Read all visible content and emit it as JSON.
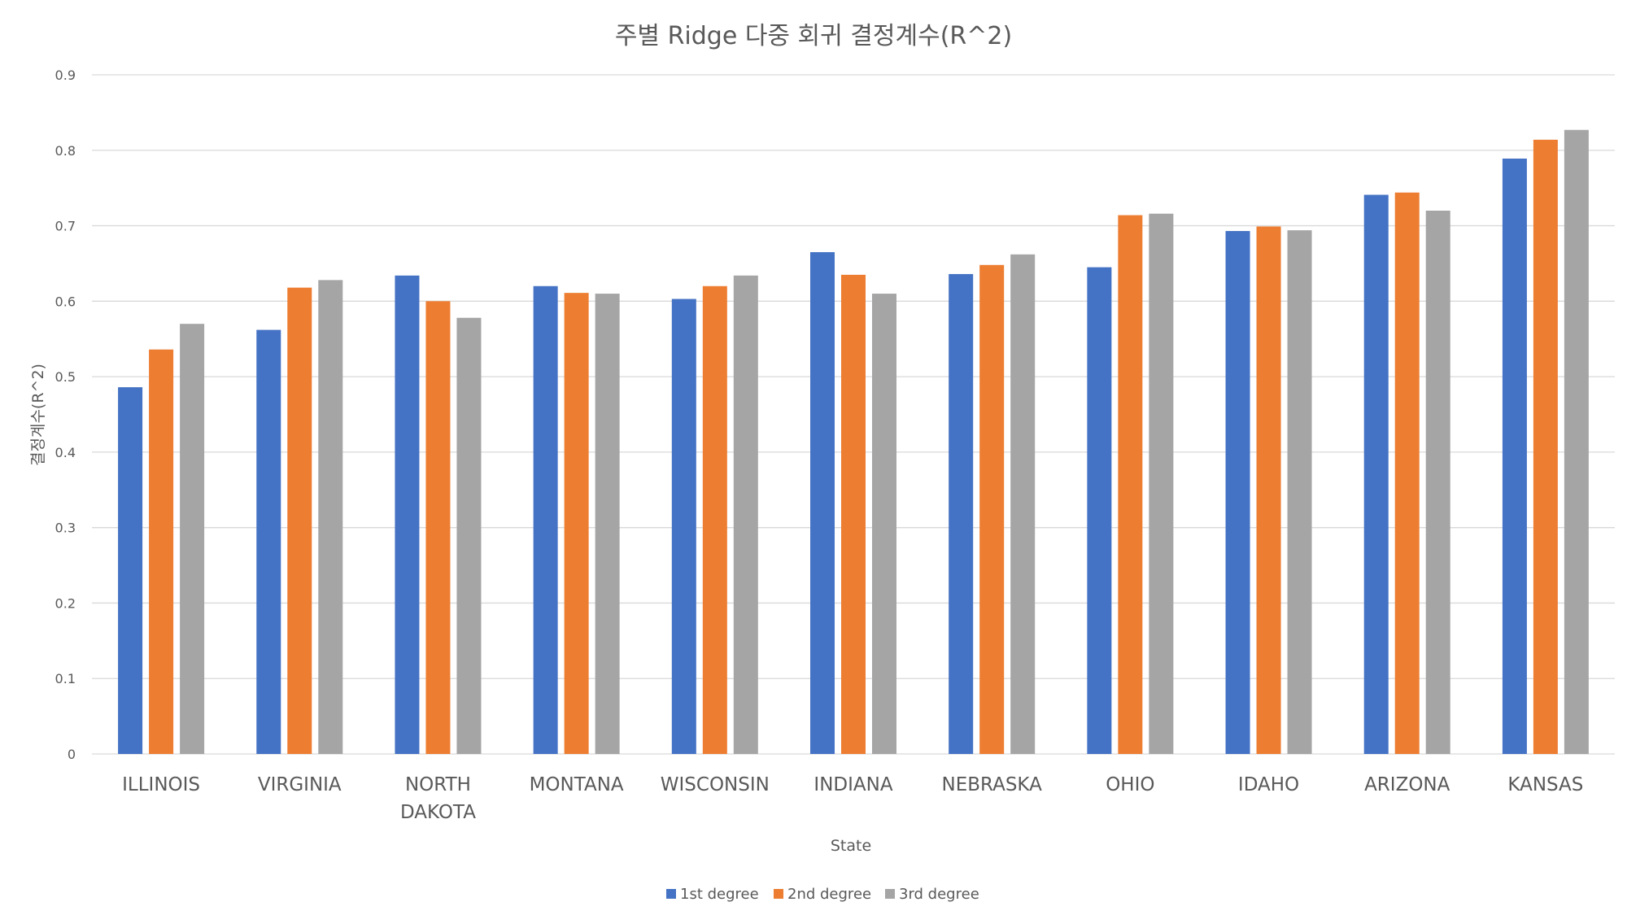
{
  "chart_data": {
    "type": "bar",
    "title": "주별 Ridge 다중 회귀 결정계수(R^2)",
    "xlabel": "State",
    "ylabel": "결정계수(R^2)",
    "ylim": [
      0,
      0.9
    ],
    "yticks": [
      "0",
      "0.1",
      "0.2",
      "0.3",
      "0.4",
      "0.5",
      "0.6",
      "0.7",
      "0.8",
      "0.9"
    ],
    "grid": "horizontal",
    "legend_position": "bottom",
    "categories": [
      [
        "ILLINOIS"
      ],
      [
        "VIRGINIA"
      ],
      [
        "NORTH",
        "DAKOTA"
      ],
      [
        "MONTANA"
      ],
      [
        "WISCONSIN"
      ],
      [
        "INDIANA"
      ],
      [
        "NEBRASKA"
      ],
      [
        "OHIO"
      ],
      [
        "IDAHO"
      ],
      [
        "ARIZONA"
      ],
      [
        "KANSAS"
      ]
    ],
    "series": [
      {
        "name": "1st degree",
        "color": "#4472C4",
        "values": [
          0.486,
          0.562,
          0.634,
          0.62,
          0.603,
          0.665,
          0.636,
          0.645,
          0.693,
          0.741,
          0.789
        ]
      },
      {
        "name": "2nd degree",
        "color": "#ED7D31",
        "values": [
          0.536,
          0.618,
          0.6,
          0.611,
          0.62,
          0.635,
          0.648,
          0.714,
          0.699,
          0.744,
          0.814
        ]
      },
      {
        "name": "3rd degree",
        "color": "#A5A5A5",
        "values": [
          0.57,
          0.628,
          0.578,
          0.61,
          0.634,
          0.61,
          0.662,
          0.716,
          0.694,
          0.72,
          0.827
        ]
      }
    ]
  }
}
